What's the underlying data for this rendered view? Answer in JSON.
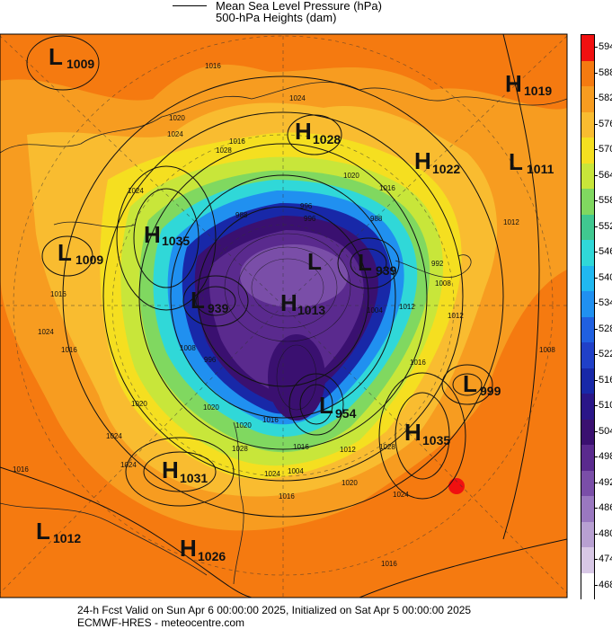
{
  "header": {
    "legend_line1": "Mean Sea Level Pressure (hPa)",
    "legend_line2": "500-hPa Heights (dam)"
  },
  "footer": {
    "line1": "24-h Fcst Valid on Sun Apr  6 00:00:00 2025, Initialized on Sat Apr  5 00:00:00 2025",
    "line2": "ECMWF-HRES  - meteocentre.com"
  },
  "colorbar": {
    "labels": [
      "594",
      "588",
      "582",
      "576",
      "570",
      "564",
      "558",
      "552",
      "546",
      "540",
      "534",
      "528",
      "522",
      "516",
      "510",
      "504",
      "498",
      "492",
      "486",
      "480",
      "474",
      "468"
    ],
    "colors": [
      "#f01010",
      "#f57a10",
      "#f79c20",
      "#f9bc30",
      "#f5df20",
      "#c8e63a",
      "#80d860",
      "#40c890",
      "#30d8d8",
      "#20b8f0",
      "#2090f0",
      "#2060e0",
      "#2040c8",
      "#1828a8",
      "#2a1688",
      "#3a1070",
      "#5a2a8e",
      "#7a4ea8",
      "#9a78c0",
      "#b8a0d2",
      "#d8c8e6",
      "#ffffff"
    ]
  },
  "map_labels": {
    "systems": [
      {
        "type": "L",
        "value": "1009",
        "id": "l-1009-nw"
      },
      {
        "type": "H",
        "value": "1019",
        "id": "h-1019-ne"
      },
      {
        "type": "H",
        "value": "1028",
        "id": "h-1028"
      },
      {
        "type": "H",
        "value": "1022",
        "id": "h-1022"
      },
      {
        "type": "L",
        "value": "1011",
        "id": "l-1011"
      },
      {
        "type": "H",
        "value": "1035",
        "id": "h-1035-w"
      },
      {
        "type": "L",
        "value": "1009",
        "id": "l-1009-w"
      },
      {
        "type": "L",
        "value": "939",
        "id": "l-939-e"
      },
      {
        "type": "L",
        "value": "939",
        "id": "l-939-w"
      },
      {
        "type": "H",
        "value": "1013",
        "id": "h-1013"
      },
      {
        "type": "L",
        "value": "999",
        "id": "l-999"
      },
      {
        "type": "L",
        "value": "954",
        "id": "l-954"
      },
      {
        "type": "H",
        "value": "1035",
        "id": "h-1035-se"
      },
      {
        "type": "H",
        "value": "1031",
        "id": "h-1031"
      },
      {
        "type": "L",
        "value": "1012",
        "id": "l-1012"
      },
      {
        "type": "H",
        "value": "1026",
        "id": "h-1026"
      }
    ],
    "single_L": "L",
    "isobars": [
      "1016",
      "1024",
      "1020",
      "1024",
      "1016",
      "1024",
      "1020",
      "1016",
      "1016",
      "1012",
      "1012",
      "1008",
      "1016",
      "1020",
      "1024",
      "1016",
      "1024",
      "1016",
      "1016",
      "1008",
      "1024",
      "1028",
      "1020",
      "1024",
      "1012",
      "1016",
      "1024",
      "1020",
      "1016",
      "1020",
      "1028",
      "1028",
      "1004",
      "996",
      "988",
      "996",
      "988",
      "992",
      "996",
      "1008",
      "1016",
      "1012",
      "1004",
      "996"
    ]
  }
}
